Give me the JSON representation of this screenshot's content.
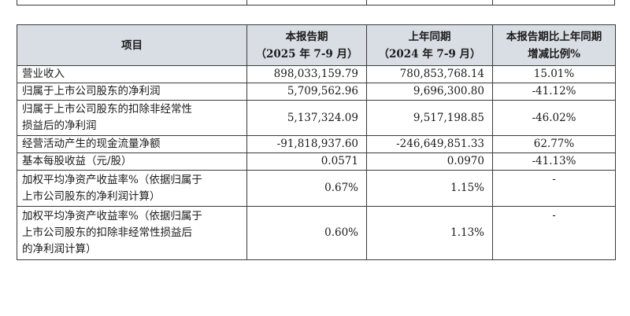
{
  "table": {
    "headers": {
      "item": "项目",
      "current_line1": "本报告期",
      "current_line2": "（2025 年 7-9 月）",
      "prior_line1": "上年同期",
      "prior_line2": "（2024 年 7-9 月）",
      "change_line1": "本报告期比上年同期",
      "change_line2": "增减比例%"
    },
    "rows": [
      {
        "label": [
          "营业收入"
        ],
        "current": "898,033,159.79",
        "prior": "780,853,768.14",
        "change": "15.01%"
      },
      {
        "label": [
          "归属于上市公司股东的净利润"
        ],
        "current": "5,709,562.96",
        "prior": "9,696,300.80",
        "change": "-41.12%"
      },
      {
        "label": [
          "归属于上市公司股东的扣除非经常性",
          "损益后的净利润"
        ],
        "current": "5,137,324.09",
        "prior": "9,517,198.85",
        "change": "-46.02%"
      },
      {
        "label": [
          "经营活动产生的现金流量净额"
        ],
        "current": "-91,818,937.60",
        "prior": "-246,649,851.33",
        "change": "62.77%"
      },
      {
        "label": [
          "基本每股收益（元/股）"
        ],
        "current": "0.0571",
        "prior": "0.0970",
        "change": "-41.13%"
      },
      {
        "label": [
          "加权平均净资产收益率%（依据归属于",
          "上市公司股东的净利润计算）"
        ],
        "current": "0.67%",
        "prior": "1.15%",
        "change": "-"
      },
      {
        "label": [
          "加权平均净资产收益率%（依据归属于",
          "上市公司股东的扣除非经常性损益后",
          "的净利润计算）"
        ],
        "current": "0.60%",
        "prior": "1.13%",
        "change": "-"
      }
    ]
  }
}
